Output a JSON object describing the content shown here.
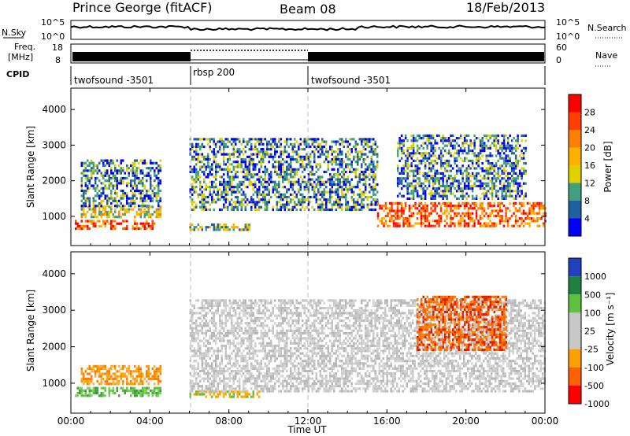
{
  "header": {
    "station": "Prince George (fitACF)",
    "beam": "Beam 08",
    "date": "18/Feb/2013"
  },
  "strip_nsky": {
    "label": "N.Sky",
    "ticks_left": [
      "10^5",
      "10^0"
    ],
    "ticks_right": [
      "10^5",
      "10^0"
    ],
    "right_label": "N.Search"
  },
  "strip_freq": {
    "label_line1": "Freq.",
    "label_line2": "[MHz]",
    "ticks_left": [
      "18",
      "8"
    ],
    "ticks_right": [
      "60",
      "0"
    ],
    "right_label": "Nave"
  },
  "cpid": {
    "label": "CPID",
    "segments": [
      {
        "name": "twofsound -3501",
        "start_hour": 0,
        "end_hour": 6
      },
      {
        "name": "rbsp 200",
        "start_hour": 6,
        "end_hour": 12
      },
      {
        "name": "twofsound -3501",
        "start_hour": 12,
        "end_hour": 24
      }
    ]
  },
  "x_axis": {
    "label": "Time UT",
    "ticks": [
      "00:00",
      "04:00",
      "08:00",
      "12:00",
      "16:00",
      "20:00",
      "00:00"
    ]
  },
  "chart_data": [
    {
      "type": "heatmap",
      "panel": "power",
      "xlabel": "Time UT",
      "ylabel": "Slant Range [km]",
      "x_range_hours": [
        0,
        24
      ],
      "ylim": [
        180,
        4600
      ],
      "y_ticks": [
        1000,
        2000,
        3000,
        4000
      ],
      "colorbar_label": "Power [dB]",
      "colorbar_ticks": [
        "28",
        "24",
        "20",
        "16",
        "12",
        "8",
        "4"
      ],
      "colorbar_colors": [
        "#ff0000",
        "#ff4000",
        "#ff8000",
        "#ffb000",
        "#e0d000",
        "#40a080",
        "#2060a0",
        "#0000ff"
      ],
      "features": [
        {
          "start_hour": 0.2,
          "end_hour": 4.2,
          "range_km": [
            650,
            900
          ],
          "level": "high"
        },
        {
          "start_hour": 0.5,
          "end_hour": 4.5,
          "range_km": [
            950,
            1300
          ],
          "level": "mid-high"
        },
        {
          "start_hour": 0.5,
          "end_hour": 4.5,
          "range_km": [
            1300,
            2600
          ],
          "level": "low"
        },
        {
          "start_hour": 6.0,
          "end_hour": 9.0,
          "range_km": [
            650,
            800
          ],
          "level": "mid"
        },
        {
          "start_hour": 6.0,
          "end_hour": 15.5,
          "range_km": [
            1200,
            3200
          ],
          "level": "low-mid"
        },
        {
          "start_hour": 15.5,
          "end_hour": 24.0,
          "range_km": [
            700,
            1400
          ],
          "level": "high"
        },
        {
          "start_hour": 16.5,
          "end_hour": 23.0,
          "range_km": [
            1500,
            3300
          ],
          "level": "low"
        }
      ]
    },
    {
      "type": "heatmap",
      "panel": "velocity",
      "xlabel": "Time UT",
      "ylabel": "Slant Range [km]",
      "x_range_hours": [
        0,
        24
      ],
      "ylim": [
        180,
        4600
      ],
      "y_ticks": [
        1000,
        2000,
        3000,
        4000
      ],
      "colorbar_label": "Velocity [m s⁻¹]",
      "colorbar_ticks": [
        "1000",
        "500",
        "100",
        "25",
        "-25",
        "-100",
        "-500",
        "-1000"
      ],
      "colorbar_colors": [
        "#2040c0",
        "#208040",
        "#60c040",
        "#c8c8c8",
        "#c8c8c8",
        "#ffa000",
        "#ff6000",
        "#ff0000"
      ],
      "features": [
        {
          "start_hour": 0.2,
          "end_hour": 4.5,
          "range_km": [
            650,
            900
          ],
          "class": "green"
        },
        {
          "start_hour": 0.5,
          "end_hour": 4.5,
          "range_km": [
            1000,
            1500
          ],
          "class": "orange"
        },
        {
          "start_hour": 6.0,
          "end_hour": 9.5,
          "range_km": [
            650,
            800
          ],
          "class": "orange-green"
        },
        {
          "start_hour": 6.0,
          "end_hour": 24.0,
          "range_km": [
            800,
            3300
          ],
          "class": "grey"
        },
        {
          "start_hour": 17.5,
          "end_hour": 22.0,
          "range_km": [
            1900,
            3400
          ],
          "class": "orange-red"
        }
      ]
    }
  ]
}
